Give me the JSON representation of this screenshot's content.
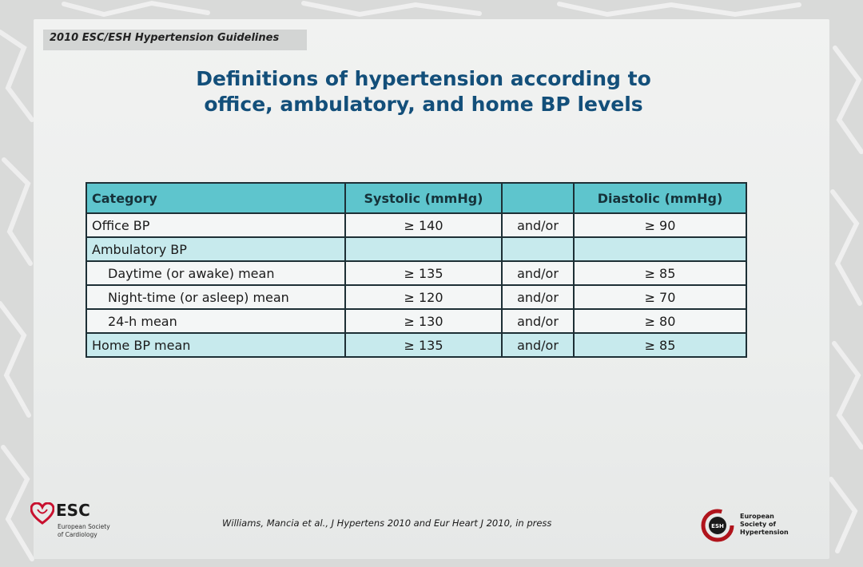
{
  "header": {
    "guideline_label": "2010 ESC/ESH Hypertension Guidelines"
  },
  "title": {
    "line1": "Definitions of hypertension according to",
    "line2": "office, ambulatory, and home BP levels"
  },
  "table": {
    "headers": {
      "category": "Category",
      "systolic": "Systolic (mmHg)",
      "connector": "",
      "diastolic": "Diastolic (mmHg)"
    },
    "rows": [
      {
        "category": "Office BP",
        "systolic": "≥ 140",
        "connector": "and/or",
        "diastolic": "≥ 90"
      },
      {
        "category": "Ambulatory BP",
        "systolic": "",
        "connector": "",
        "diastolic": ""
      },
      {
        "category": "Daytime (or awake) mean",
        "systolic": "≥ 135",
        "connector": "and/or",
        "diastolic": "≥ 85"
      },
      {
        "category": "Night-time (or asleep) mean",
        "systolic": "≥ 120",
        "connector": "and/or",
        "diastolic": "≥ 70"
      },
      {
        "category": "24-h mean",
        "systolic": "≥ 130",
        "connector": "and/or",
        "diastolic": "≥ 80"
      },
      {
        "category": "Home BP mean",
        "systolic": "≥ 135",
        "connector": "and/or",
        "diastolic": "≥ 85"
      }
    ]
  },
  "citation": "Williams, Mancia et al., J Hypertens 2010 and Eur Heart J 2010, in press",
  "logos": {
    "esc": {
      "name": "ESC",
      "sub_line1": "European Society",
      "sub_line2": "of Cardiology"
    },
    "esh": {
      "badge": "ESH",
      "line1": "European",
      "line2": "Society of",
      "line3": "Hypertension"
    }
  },
  "colors": {
    "title": "#134f7a",
    "table_header": "#5ec5cd",
    "table_shaded_row": "#c7eaed",
    "esc_heart": "#c8102e",
    "esh_ring": "#b0141c"
  }
}
